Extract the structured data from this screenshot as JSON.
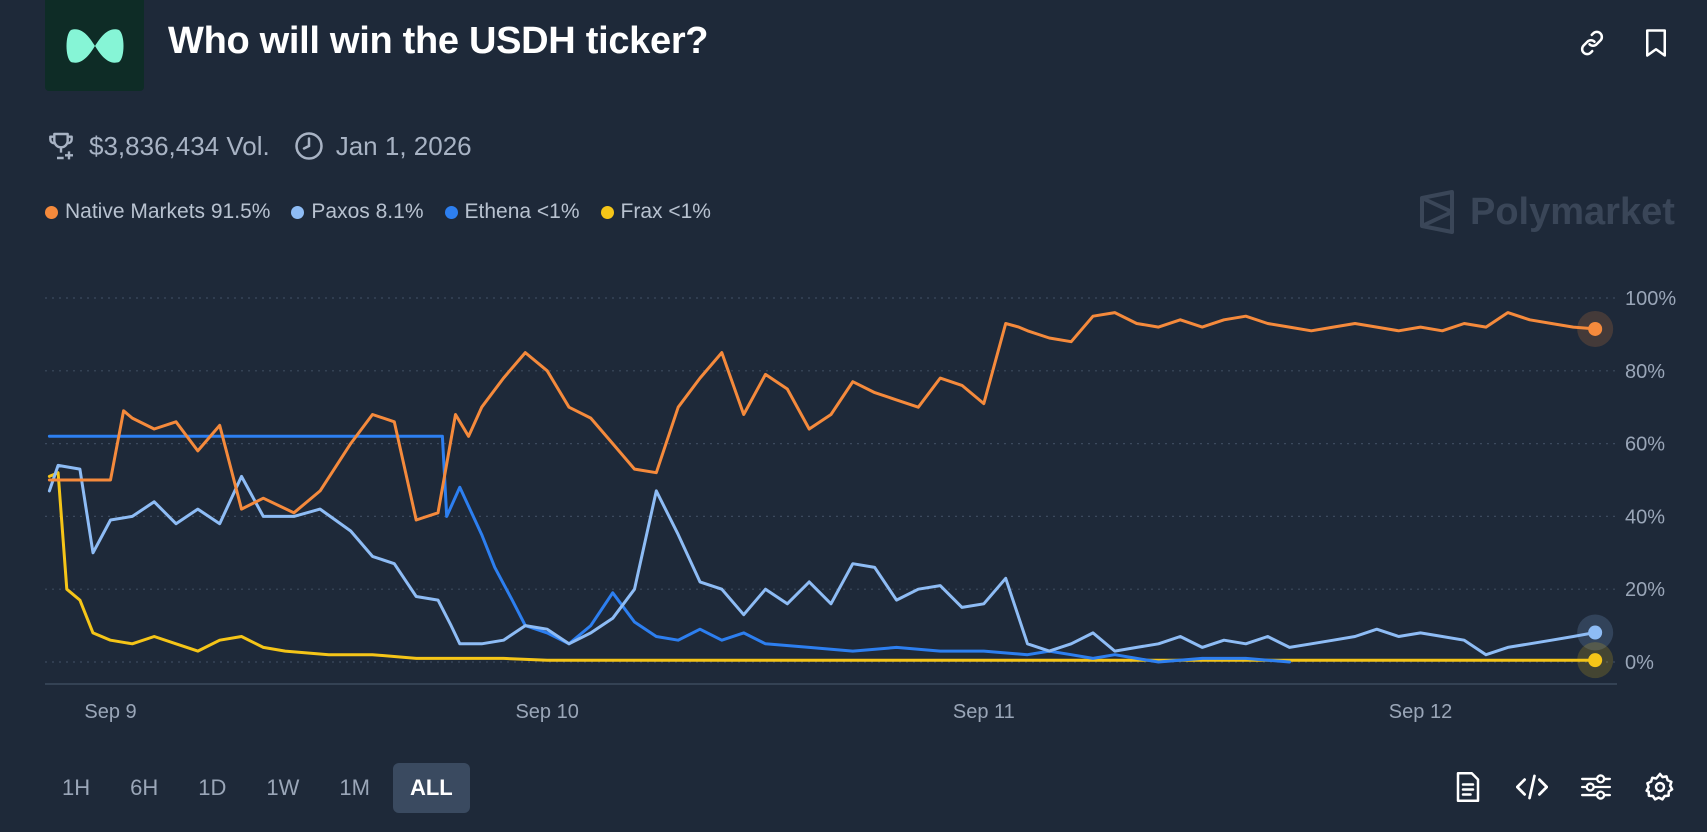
{
  "header": {
    "title": "Who will win the USDH ticker?",
    "link_icon": "link-icon",
    "bookmark_icon": "bookmark-icon",
    "logo_icon": "market-logo-icon"
  },
  "meta": {
    "volume": "$3,836,434 Vol.",
    "end_date": "Jan 1, 2026",
    "volume_icon": "trophy-icon",
    "date_icon": "clock-icon"
  },
  "legend": [
    {
      "label": "Native Markets 91.5%",
      "color": "#f58a3c"
    },
    {
      "label": "Paxos 8.1%",
      "color": "#8ebcf5"
    },
    {
      "label": "Ethena <1%",
      "color": "#2d7ff0"
    },
    {
      "label": "Frax <1%",
      "color": "#f5c518"
    }
  ],
  "watermark": "Polymarket",
  "chart_data": {
    "type": "line",
    "title": "",
    "xlabel": "",
    "ylabel": "",
    "x_unit": "days",
    "x_ticks": [
      {
        "label": "Sep 9",
        "value": 9
      },
      {
        "label": "Sep 10",
        "value": 10
      },
      {
        "label": "Sep 11",
        "value": 11
      },
      {
        "label": "Sep 12",
        "value": 12
      }
    ],
    "xlim": [
      8.85,
      12.45
    ],
    "y_ticks": [
      {
        "label": "0%",
        "value": 0
      },
      {
        "label": "20%",
        "value": 20
      },
      {
        "label": "40%",
        "value": 40
      },
      {
        "label": "60%",
        "value": 60
      },
      {
        "label": "80%",
        "value": 80
      },
      {
        "label": "100%",
        "value": 100
      }
    ],
    "ylim": [
      0,
      100
    ],
    "grid": "dotted horizontal",
    "series": [
      {
        "name": "Native Markets",
        "color": "#f58a3c",
        "x": [
          8.86,
          8.95,
          9.0,
          9.03,
          9.05,
          9.1,
          9.15,
          9.2,
          9.25,
          9.3,
          9.35,
          9.42,
          9.48,
          9.55,
          9.6,
          9.65,
          9.7,
          9.75,
          9.79,
          9.82,
          9.85,
          9.9,
          9.95,
          10.0,
          10.05,
          10.1,
          10.15,
          10.2,
          10.25,
          10.3,
          10.35,
          10.4,
          10.45,
          10.5,
          10.55,
          10.6,
          10.65,
          10.7,
          10.75,
          10.8,
          10.85,
          10.9,
          10.95,
          11.0,
          11.05,
          11.08,
          11.1,
          11.15,
          11.2,
          11.25,
          11.3,
          11.35,
          11.4,
          11.45,
          11.5,
          11.55,
          11.6,
          11.65,
          11.7,
          11.75,
          11.8,
          11.85,
          11.9,
          11.95,
          12.0,
          12.05,
          12.1,
          12.15,
          12.2,
          12.25,
          12.3,
          12.35,
          12.4
        ],
        "y": [
          50,
          50,
          50,
          69,
          67,
          64,
          66,
          58,
          65,
          42,
          45,
          41,
          47,
          60,
          68,
          66,
          39,
          41,
          68,
          62,
          70,
          78,
          85,
          80,
          70,
          67,
          60,
          53,
          52,
          70,
          78,
          85,
          68,
          79,
          75,
          64,
          68,
          77,
          74,
          72,
          70,
          78,
          76,
          71,
          93,
          92,
          91,
          89,
          88,
          95,
          96,
          93,
          92,
          94,
          92,
          94,
          95,
          93,
          92,
          91,
          92,
          93,
          92,
          91,
          92,
          91,
          93,
          92,
          96,
          94,
          93,
          92,
          91.5
        ]
      },
      {
        "name": "Paxos",
        "color": "#8ebcf5",
        "x": [
          8.86,
          8.88,
          8.93,
          8.96,
          9.0,
          9.05,
          9.1,
          9.15,
          9.2,
          9.25,
          9.3,
          9.35,
          9.42,
          9.48,
          9.55,
          9.6,
          9.65,
          9.7,
          9.75,
          9.78,
          9.8,
          9.85,
          9.9,
          9.95,
          10.0,
          10.05,
          10.1,
          10.15,
          10.2,
          10.25,
          10.3,
          10.35,
          10.4,
          10.45,
          10.5,
          10.55,
          10.6,
          10.65,
          10.7,
          10.75,
          10.8,
          10.85,
          10.9,
          10.95,
          11.0,
          11.05,
          11.1,
          11.15,
          11.2,
          11.25,
          11.3,
          11.35,
          11.4,
          11.45,
          11.5,
          11.55,
          11.6,
          11.65,
          11.7,
          11.75,
          11.8,
          11.85,
          11.9,
          11.95,
          12.0,
          12.05,
          12.1,
          12.15,
          12.2,
          12.25,
          12.3,
          12.35,
          12.4
        ],
        "y": [
          47,
          54,
          53,
          30,
          39,
          40,
          44,
          38,
          42,
          38,
          51,
          40,
          40,
          42,
          36,
          29,
          27,
          18,
          17,
          10,
          5,
          5,
          6,
          10,
          9,
          5,
          8,
          12,
          20,
          47,
          35,
          22,
          20,
          13,
          20,
          16,
          22,
          16,
          27,
          26,
          17,
          20,
          21,
          15,
          16,
          23,
          5,
          3,
          5,
          8,
          3,
          4,
          5,
          7,
          4,
          6,
          5,
          7,
          4,
          5,
          6,
          7,
          9,
          7,
          8,
          7,
          6,
          2,
          4,
          5,
          6,
          7,
          8.1
        ]
      },
      {
        "name": "Ethena",
        "color": "#2d7ff0",
        "x": [
          8.86,
          9.0,
          9.2,
          9.4,
          9.6,
          9.76,
          9.77,
          9.8,
          9.85,
          9.88,
          9.92,
          9.95,
          10.0,
          10.05,
          10.1,
          10.15,
          10.2,
          10.25,
          10.3,
          10.35,
          10.4,
          10.45,
          10.5,
          10.6,
          10.7,
          10.8,
          10.9,
          11.0,
          11.1,
          11.15,
          11.2,
          11.25,
          11.3,
          11.35,
          11.4,
          11.5,
          11.6,
          11.7
        ],
        "y": [
          62,
          62,
          62,
          62,
          62,
          62,
          40,
          48,
          35,
          26,
          17,
          10,
          8,
          5,
          10,
          19,
          11,
          7,
          6,
          9,
          6,
          8,
          5,
          4,
          3,
          4,
          3,
          3,
          2,
          3,
          2,
          1,
          2,
          1,
          0,
          1,
          1,
          0
        ]
      },
      {
        "name": "Frax",
        "color": "#f5c518",
        "x": [
          8.86,
          8.88,
          8.9,
          8.93,
          8.96,
          9.0,
          9.05,
          9.1,
          9.15,
          9.2,
          9.25,
          9.3,
          9.35,
          9.4,
          9.5,
          9.6,
          9.7,
          9.8,
          9.9,
          10.0,
          10.2,
          10.4,
          10.6,
          10.8,
          11.0,
          11.2,
          11.4,
          11.6,
          11.8,
          12.0,
          12.2,
          12.4
        ],
        "y": [
          51,
          52,
          20,
          17,
          8,
          6,
          5,
          7,
          5,
          3,
          6,
          7,
          4,
          3,
          2,
          2,
          1,
          1,
          1,
          0.5,
          0.5,
          0.5,
          0.5,
          0.5,
          0.5,
          0.5,
          0.5,
          0.5,
          0.5,
          0.5,
          0.5,
          0.5
        ]
      }
    ]
  },
  "tabs": [
    {
      "label": "1H",
      "active": false
    },
    {
      "label": "6H",
      "active": false
    },
    {
      "label": "1D",
      "active": false
    },
    {
      "label": "1W",
      "active": false
    },
    {
      "label": "1M",
      "active": false
    },
    {
      "label": "ALL",
      "active": true
    }
  ],
  "tools": [
    "document-icon",
    "embed-code-icon",
    "sliders-icon",
    "gear-icon"
  ]
}
